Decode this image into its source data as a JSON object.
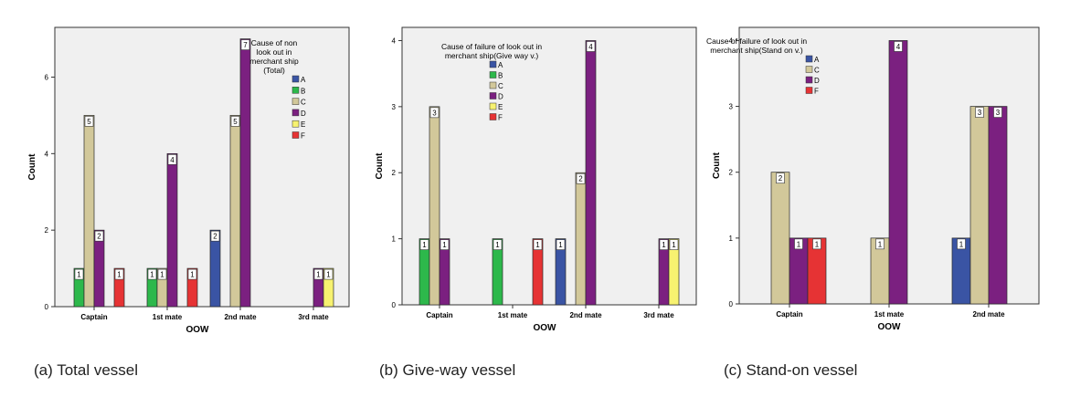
{
  "colors": {
    "A": "#3a54a4",
    "B": "#2db84b",
    "C": "#d2c89a",
    "D": "#7b2080",
    "E": "#f7f270",
    "F": "#e63334",
    "plot_bg": "#f0f0f0"
  },
  "chart_data": [
    {
      "type": "bar",
      "caption": "(a) Total vessel",
      "legend_title": [
        "Cause of non",
        "look out in",
        "merchant ship",
        "(Total)"
      ],
      "xlabel": "OOW",
      "ylabel": "Count",
      "ylim": [
        0,
        7.3
      ],
      "yticks": [
        0,
        2,
        4,
        6
      ],
      "categories": [
        "Captain",
        "1st mate",
        "2nd mate",
        "3rd mate"
      ],
      "series": [
        {
          "name": "A",
          "values": [
            0,
            0,
            2,
            0
          ]
        },
        {
          "name": "B",
          "values": [
            1,
            1,
            0,
            0
          ]
        },
        {
          "name": "C",
          "values": [
            5,
            1,
            5,
            0
          ]
        },
        {
          "name": "D",
          "values": [
            2,
            4,
            7,
            1
          ]
        },
        {
          "name": "E",
          "values": [
            0,
            0,
            0,
            1
          ]
        },
        {
          "name": "F",
          "values": [
            1,
            1,
            0,
            0
          ]
        }
      ]
    },
    {
      "type": "bar",
      "caption": "(b) Give-way vessel",
      "legend_title": [
        "Cause of failure of look out in",
        "merchant ship(Give way v.)"
      ],
      "xlabel": "OOW",
      "ylabel": "Count",
      "ylim": [
        0,
        4.2
      ],
      "yticks": [
        0,
        1,
        2,
        3,
        4
      ],
      "categories": [
        "Captain",
        "1st mate",
        "2nd mate",
        "3rd mate"
      ],
      "series": [
        {
          "name": "A",
          "values": [
            0,
            0,
            1,
            0
          ]
        },
        {
          "name": "B",
          "values": [
            1,
            1,
            0,
            0
          ]
        },
        {
          "name": "C",
          "values": [
            3,
            0,
            2,
            0
          ]
        },
        {
          "name": "D",
          "values": [
            1,
            0,
            4,
            1
          ]
        },
        {
          "name": "E",
          "values": [
            0,
            0,
            0,
            1
          ]
        },
        {
          "name": "F",
          "values": [
            0,
            1,
            0,
            0
          ]
        }
      ]
    },
    {
      "type": "bar",
      "caption": "(c) Stand-on vessel",
      "legend_title": [
        "Cause of failure of look out in",
        "merchant ship(Stand on v.)"
      ],
      "xlabel": "OOW",
      "ylabel": "Count",
      "ylim": [
        0,
        4.2
      ],
      "yticks": [
        0,
        1,
        2,
        3,
        4
      ],
      "categories": [
        "Captain",
        "1st mate",
        "2nd mate"
      ],
      "series": [
        {
          "name": "A",
          "values": [
            0,
            0,
            1
          ]
        },
        {
          "name": "C",
          "values": [
            2,
            1,
            3
          ]
        },
        {
          "name": "D",
          "values": [
            1,
            4,
            3
          ]
        },
        {
          "name": "F",
          "values": [
            1,
            0,
            0
          ]
        }
      ]
    }
  ]
}
